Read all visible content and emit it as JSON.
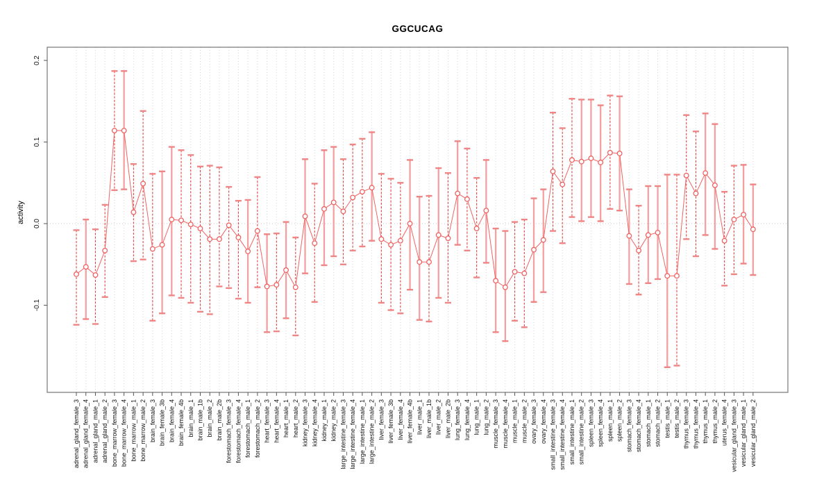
{
  "chart": {
    "title": "GGCUCAG",
    "ylabel": "activity"
  },
  "chart_data": {
    "type": "line",
    "subtype": "points-with-error-bars",
    "title": "GGCUCAG",
    "xlabel": "",
    "ylabel": "activity",
    "ylim": [
      -0.205,
      0.215
    ],
    "yticks": [
      {
        "v": -0.1,
        "label": "-0.1"
      },
      {
        "v": 0.0,
        "label": "0.0"
      },
      {
        "v": 0.1,
        "label": "0.1"
      },
      {
        "v": 0.2,
        "label": "0.2"
      }
    ],
    "grid": "vertical dotted gridline per category; horizontal dotted line at zero",
    "legend": "none",
    "colors": {
      "point": "#f06262",
      "connector_line": "#f06262",
      "error_bar_dashed": "#e04343",
      "error_bar_solid": "#f4a0a0",
      "error_bar_cap": "#ef8585",
      "gridline": "#d4d4d4",
      "zero_line": "#c8c8c8",
      "plot_border": "#7f7f7f",
      "tick": "#555555",
      "tick_label": "#111111"
    },
    "categories": [
      "adrenal_gland_female_3",
      "adrenal_gland_female_4",
      "adrenal_gland_male_1",
      "adrenal_gland_male_2",
      "bone_marrow_female_3",
      "bone_marrow_female_4",
      "bone_marrow_male_1",
      "bone_marrow_male_2",
      "brain_female_3",
      "brain_female_3b",
      "brain_female_4",
      "brain_female_4b",
      "brain_male_1",
      "brain_male_1b",
      "brain_male_2",
      "brain_male_2b",
      "forestomach_female_3",
      "forestomach_female_4",
      "forestomach_male_1",
      "forestomach_male_2",
      "heart_female_3",
      "heart_female_4",
      "heart_male_1",
      "heart_male_2",
      "kidney_female_3",
      "kidney_female_4",
      "kidney_male_1",
      "kidney_male_2",
      "large_intestine_female_3",
      "large_intestine_female_4",
      "large_intestine_male_1",
      "large_intestine_male_2",
      "liver_female_3",
      "liver_female_3b",
      "liver_female_4",
      "liver_female_4b",
      "liver_male_1",
      "liver_male_1b",
      "liver_male_2",
      "liver_male_2b",
      "lung_female_3",
      "lung_female_4",
      "lung_male_1",
      "lung_male_2",
      "muscle_female_3",
      "muscle_female_4",
      "muscle_male_1",
      "muscle_male_2",
      "ovary_female_3",
      "ovary_female_4",
      "small_intestine_female_3",
      "small_intestine_female_4",
      "small_intestine_male_1",
      "small_intestine_male_2",
      "spleen_female_3",
      "spleen_female_4",
      "spleen_male_1",
      "spleen_male_2",
      "stomach_female_3",
      "stomach_female_4",
      "stomach_male_1",
      "stomach_male_2",
      "testis_male_1",
      "testis_male_2",
      "thymus_female_3",
      "thymus_female_4",
      "thymus_male_1",
      "thymus_male_2",
      "uterus_female_4",
      "vesicular_gland_female_3",
      "vesicular_gland_male_1",
      "vesicular_gland_male_2"
    ],
    "values": [
      -0.062,
      -0.053,
      -0.063,
      -0.033,
      0.114,
      0.114,
      0.014,
      0.049,
      -0.031,
      -0.026,
      0.005,
      0.004,
      -0.001,
      -0.006,
      -0.019,
      -0.019,
      -0.002,
      -0.017,
      -0.034,
      -0.009,
      -0.077,
      -0.075,
      -0.057,
      -0.078,
      0.009,
      -0.024,
      0.018,
      0.026,
      0.015,
      0.032,
      0.039,
      0.044,
      -0.019,
      -0.026,
      -0.021,
      0.0,
      -0.047,
      -0.047,
      -0.014,
      -0.018,
      0.037,
      0.03,
      -0.006,
      0.016,
      -0.07,
      -0.078,
      -0.059,
      -0.061,
      -0.032,
      -0.02,
      0.064,
      0.048,
      0.078,
      0.076,
      0.08,
      0.075,
      0.087,
      0.086,
      -0.015,
      -0.033,
      -0.014,
      -0.011,
      -0.064,
      -0.064,
      0.059,
      0.037,
      0.062,
      0.047,
      -0.021,
      0.005,
      0.011,
      -0.007
    ],
    "err_lo": [
      -0.124,
      -0.117,
      -0.123,
      -0.09,
      0.041,
      0.042,
      -0.046,
      -0.044,
      -0.119,
      -0.11,
      -0.088,
      -0.091,
      -0.097,
      -0.108,
      -0.111,
      -0.077,
      -0.079,
      -0.092,
      -0.097,
      -0.078,
      -0.133,
      -0.132,
      -0.116,
      -0.137,
      -0.061,
      -0.096,
      -0.051,
      -0.04,
      -0.05,
      -0.033,
      -0.028,
      -0.021,
      -0.097,
      -0.106,
      -0.11,
      -0.081,
      -0.118,
      -0.12,
      -0.091,
      -0.097,
      -0.026,
      -0.033,
      -0.066,
      -0.048,
      -0.133,
      -0.144,
      -0.119,
      -0.127,
      -0.096,
      -0.084,
      -0.009,
      -0.024,
      0.008,
      0.003,
      0.008,
      0.003,
      0.018,
      0.016,
      -0.074,
      -0.087,
      -0.073,
      -0.068,
      -0.176,
      -0.174,
      -0.019,
      -0.04,
      -0.014,
      -0.031,
      -0.076,
      -0.062,
      -0.049,
      -0.063
    ],
    "err_hi": [
      -0.008,
      0.005,
      -0.007,
      0.023,
      0.187,
      0.187,
      0.073,
      0.138,
      0.061,
      0.064,
      0.094,
      0.09,
      0.084,
      0.07,
      0.071,
      0.069,
      0.045,
      0.028,
      0.029,
      0.057,
      -0.013,
      -0.012,
      0.002,
      -0.017,
      0.079,
      0.049,
      0.09,
      0.094,
      0.079,
      0.097,
      0.104,
      0.112,
      0.061,
      0.055,
      0.05,
      0.078,
      0.033,
      0.034,
      0.068,
      0.062,
      0.101,
      0.092,
      0.056,
      0.078,
      -0.006,
      -0.009,
      0.002,
      0.005,
      0.031,
      0.042,
      0.136,
      0.117,
      0.153,
      0.152,
      0.152,
      0.145,
      0.157,
      0.156,
      0.042,
      0.022,
      0.046,
      0.046,
      0.06,
      0.06,
      0.133,
      0.113,
      0.135,
      0.122,
      0.039,
      0.071,
      0.072,
      0.048
    ],
    "bar_style": [
      "d",
      "s",
      "d",
      "d",
      "d",
      "s",
      "d",
      "d",
      "d",
      "s",
      "s",
      "d",
      "d",
      "d",
      "d",
      "d",
      "d",
      "d",
      "s",
      "d",
      "s",
      "d",
      "s",
      "d",
      "s",
      "d",
      "s",
      "s",
      "d",
      "d",
      "d",
      "s",
      "d",
      "d",
      "d",
      "s",
      "s",
      "d",
      "s",
      "d",
      "s",
      "d",
      "d",
      "s",
      "s",
      "s",
      "d",
      "d",
      "s",
      "s",
      "d",
      "d",
      "d",
      "s",
      "s",
      "s",
      "d",
      "s",
      "s",
      "d",
      "s",
      "s",
      "s",
      "d",
      "d",
      "d",
      "s",
      "s",
      "d",
      "d",
      "s",
      "s"
    ]
  }
}
